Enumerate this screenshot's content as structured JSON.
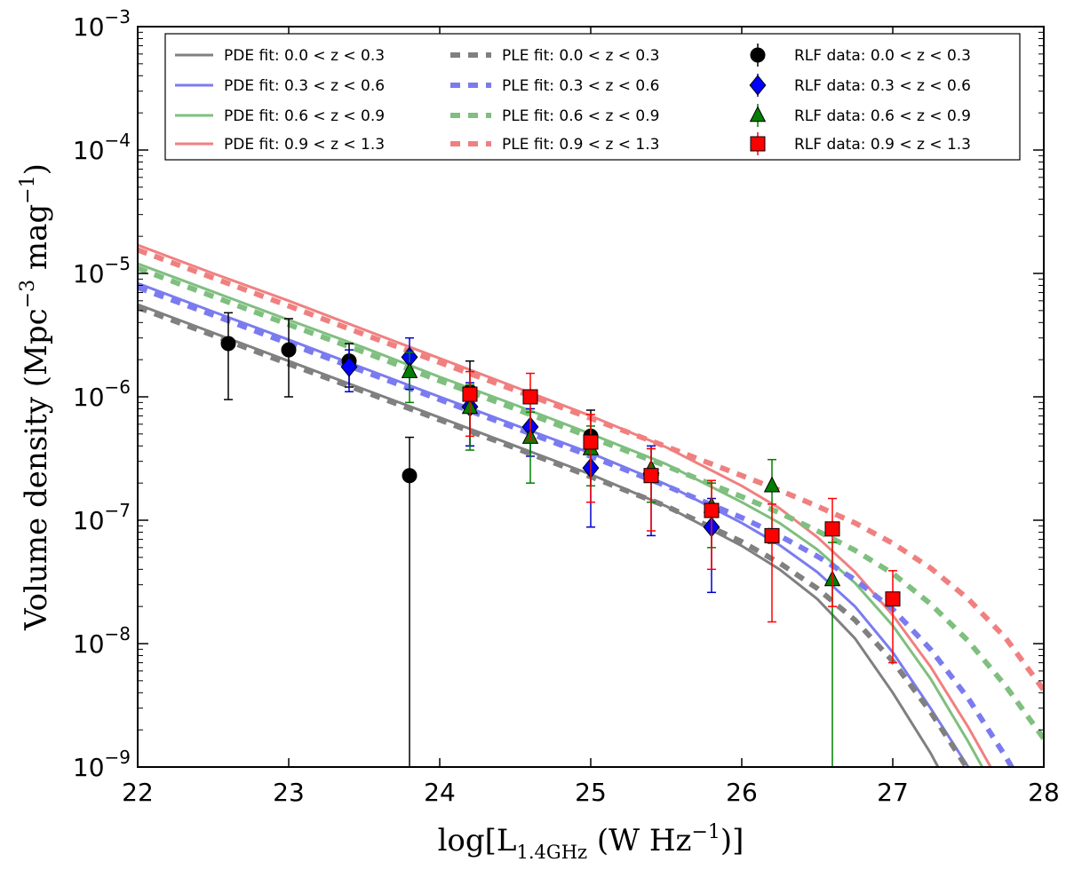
{
  "chart_data": {
    "type": "line",
    "xlabel": "log[L1.4GHz (W Hz−1)]",
    "ylabel": "Volume density (Mpc−3 mag−1)",
    "xlim": [
      22,
      28
    ],
    "ylim_log10": [
      -9,
      -3
    ],
    "yscale": "log",
    "x_ticks": [
      22,
      23,
      24,
      25,
      26,
      27,
      28
    ],
    "y_ticks": [
      {
        "base": "10",
        "exp": "-9",
        "value": -9
      },
      {
        "base": "10",
        "exp": "-8",
        "value": -8
      },
      {
        "base": "10",
        "exp": "-7",
        "value": -7
      },
      {
        "base": "10",
        "exp": "-6",
        "value": -6
      },
      {
        "base": "10",
        "exp": "-5",
        "value": -5
      },
      {
        "base": "10",
        "exp": "-4",
        "value": -4
      },
      {
        "base": "10",
        "exp": "-3",
        "value": -3
      }
    ],
    "legend_position": "top",
    "curves": [
      {
        "name": "PDE fit: 0.0 < z < 0.3",
        "model": "PDE",
        "color": "#808080",
        "x": [
          22,
          22.5,
          23,
          23.5,
          24,
          24.5,
          25,
          25.5,
          26,
          26.25,
          26.5,
          26.75,
          27,
          27.25,
          27.5
        ],
        "y": [
          5.6e-06,
          3.3e-06,
          1.95e-06,
          1.15e-06,
          6.8e-07,
          4e-07,
          2.35e-07,
          1.3e-07,
          6.2e-08,
          4e-08,
          2.3e-08,
          1.1e-08,
          4e-09,
          1.3e-09,
          3.5e-10
        ]
      },
      {
        "name": "PDE fit: 0.3 < z < 0.6",
        "model": "PDE",
        "color": "#7b7bf0",
        "x": [
          22,
          22.5,
          23,
          23.5,
          24,
          24.5,
          25,
          25.5,
          26,
          26.25,
          26.5,
          26.75,
          27,
          27.25,
          27.5,
          27.7
        ],
        "y": [
          8.3e-06,
          4.9e-06,
          2.9e-06,
          1.7e-06,
          1e-06,
          5.9e-07,
          3.5e-07,
          1.95e-07,
          9.5e-08,
          6.3e-08,
          3.8e-08,
          2e-08,
          8.5e-09,
          3e-09,
          1e-09,
          4e-10
        ]
      },
      {
        "name": "PDE fit: 0.6 < z < 0.9",
        "model": "PDE",
        "color": "#7fbf7f",
        "x": [
          22,
          22.5,
          23,
          23.5,
          24,
          24.5,
          25,
          25.5,
          26,
          26.25,
          26.5,
          26.75,
          27,
          27.25,
          27.5,
          27.75
        ],
        "y": [
          1.2e-05,
          7.1e-06,
          4.2e-06,
          2.5e-06,
          1.45e-06,
          8.6e-07,
          5e-07,
          2.85e-07,
          1.4e-07,
          9.5e-08,
          5.8e-08,
          3.1e-08,
          1.4e-08,
          5.2e-09,
          1.6e-09,
          4.5e-10
        ]
      },
      {
        "name": "PDE fit: 0.9 < z < 1.3",
        "model": "PDE",
        "color": "#f08080",
        "x": [
          22,
          22.5,
          23,
          23.5,
          24,
          24.5,
          25,
          25.5,
          26,
          26.25,
          26.5,
          26.75,
          27,
          27.25,
          27.5,
          27.75,
          27.9
        ],
        "y": [
          1.7e-05,
          1e-05,
          6e-06,
          3.5e-06,
          2.05e-06,
          1.2e-06,
          7e-07,
          3.9e-07,
          1.9e-07,
          1.25e-07,
          7.3e-08,
          3.8e-08,
          1.7e-08,
          6.5e-09,
          2.1e-09,
          6e-10,
          3e-10
        ]
      },
      {
        "name": "PLE fit: 0.0 < z < 0.3",
        "model": "PLE",
        "color": "#808080",
        "x": [
          22,
          22.5,
          23,
          23.5,
          24,
          24.5,
          25,
          25.5,
          26,
          26.25,
          26.5,
          26.75,
          27,
          27.25,
          27.5,
          27.75
        ],
        "y": [
          5.3e-06,
          3.15e-06,
          1.85e-06,
          1.1e-06,
          6.5e-07,
          3.85e-07,
          2.25e-07,
          1.3e-07,
          6.7e-08,
          4.5e-08,
          2.8e-08,
          1.55e-08,
          7.2e-09,
          2.8e-09,
          9.5e-10,
          3e-10
        ]
      },
      {
        "name": "PLE fit: 0.3 < z < 0.6",
        "model": "PLE",
        "color": "#7b7bf0",
        "x": [
          22,
          22.5,
          23,
          23.5,
          24,
          24.5,
          25,
          25.5,
          26,
          26.25,
          26.5,
          26.75,
          27,
          27.25,
          27.5,
          27.75,
          28
        ],
        "y": [
          7.7e-06,
          4.6e-06,
          2.7e-06,
          1.6e-06,
          9.5e-07,
          5.6e-07,
          3.3e-07,
          1.9e-07,
          1.05e-07,
          7.5e-08,
          5.1e-08,
          3.3e-08,
          1.9e-08,
          9e-09,
          3.6e-09,
          1.2e-09,
          3.5e-10
        ]
      },
      {
        "name": "PLE fit: 0.6 < z < 0.9",
        "model": "PLE",
        "color": "#7fbf7f",
        "x": [
          22,
          22.5,
          23,
          23.5,
          24,
          24.5,
          25,
          25.5,
          26,
          26.25,
          26.5,
          26.75,
          27,
          27.25,
          27.5,
          27.75,
          28
        ],
        "y": [
          1.1e-05,
          6.5e-06,
          3.85e-06,
          2.3e-06,
          1.35e-06,
          8e-07,
          4.7e-07,
          2.75e-07,
          1.55e-07,
          1.15e-07,
          8.2e-08,
          5.7e-08,
          3.7e-08,
          2.1e-08,
          1.05e-08,
          4.5e-09,
          1.7e-09
        ]
      },
      {
        "name": "PLE fit: 0.9 < z < 1.3",
        "model": "PLE",
        "color": "#f08080",
        "x": [
          22,
          22.5,
          23,
          23.5,
          24,
          24.5,
          25,
          25.5,
          26,
          26.25,
          26.5,
          26.75,
          27,
          27.25,
          27.5,
          27.75,
          28
        ],
        "y": [
          1.55e-05,
          9.2e-06,
          5.45e-06,
          3.2e-06,
          1.9e-06,
          1.13e-06,
          6.7e-07,
          3.95e-07,
          2.3e-07,
          1.75e-07,
          1.3e-07,
          9.5e-08,
          6.5e-08,
          4.1e-08,
          2.3e-08,
          1.1e-08,
          4.2e-09
        ]
      }
    ],
    "data_series": [
      {
        "name": "RLF data: 0.0 < z < 0.3",
        "marker": "circle",
        "color": "#000000",
        "errcolor": "#000000",
        "points": [
          {
            "x": 22.6,
            "y": 2.7e-06,
            "lo": 9.5e-07,
            "hi": 4.8e-06
          },
          {
            "x": 23.0,
            "y": 2.4e-06,
            "lo": 1e-06,
            "hi": 4.3e-06
          },
          {
            "x": 23.4,
            "y": 1.95e-06,
            "lo": 1.2e-06,
            "hi": 2.7e-06
          },
          {
            "x": 23.8,
            "y": 2.3e-07,
            "lo": 1e-09,
            "hi": 4.7e-07
          },
          {
            "x": 24.2,
            "y": 1.1e-06,
            "lo": 4e-07,
            "hi": 1.95e-06
          },
          {
            "x": 25.0,
            "y": 4.8e-07,
            "lo": 1.9e-07,
            "hi": 7.8e-07
          }
        ]
      },
      {
        "name": "RLF data: 0.3 < z < 0.6",
        "marker": "diamond",
        "color": "#0000ff",
        "errcolor": "#0000cc",
        "points": [
          {
            "x": 23.4,
            "y": 1.75e-06,
            "lo": 1.1e-06,
            "hi": 2.4e-06
          },
          {
            "x": 23.8,
            "y": 2.1e-06,
            "lo": 1.15e-06,
            "hi": 3e-06
          },
          {
            "x": 24.2,
            "y": 8.3e-07,
            "lo": 4e-07,
            "hi": 1.3e-06
          },
          {
            "x": 24.6,
            "y": 5.7e-07,
            "lo": 3.3e-07,
            "hi": 8e-07
          },
          {
            "x": 25.0,
            "y": 2.65e-07,
            "lo": 8.8e-08,
            "hi": 4.4e-07
          },
          {
            "x": 25.4,
            "y": 2.4e-07,
            "lo": 7.5e-08,
            "hi": 4e-07
          },
          {
            "x": 25.8,
            "y": 8.8e-08,
            "lo": 2.6e-08,
            "hi": 1.5e-07
          }
        ]
      },
      {
        "name": "RLF data: 0.6 < z < 0.9",
        "marker": "triangle",
        "color": "#007f00",
        "errcolor": "#007f00",
        "points": [
          {
            "x": 23.8,
            "y": 1.6e-06,
            "lo": 9e-07,
            "hi": 2.3e-06
          },
          {
            "x": 24.2,
            "y": 8.2e-07,
            "lo": 3.7e-07,
            "hi": 1.25e-06
          },
          {
            "x": 24.6,
            "y": 4.7e-07,
            "lo": 2e-07,
            "hi": 7.5e-07
          },
          {
            "x": 25.0,
            "y": 3.8e-07,
            "lo": 1.9e-07,
            "hi": 5.8e-07
          },
          {
            "x": 25.4,
            "y": 2.6e-07,
            "lo": 1.4e-07,
            "hi": 3.8e-07
          },
          {
            "x": 25.8,
            "y": 1.3e-07,
            "lo": 6e-08,
            "hi": 2e-07
          },
          {
            "x": 26.2,
            "y": 1.9e-07,
            "lo": 6.5e-08,
            "hi": 3.1e-07
          },
          {
            "x": 26.6,
            "y": 3.3e-08,
            "lo": 1e-09,
            "hi": 6.6e-08
          }
        ]
      },
      {
        "name": "RLF data: 0.9 < z < 1.3",
        "marker": "square",
        "color": "#ff0000",
        "errcolor": "#ff0000",
        "points": [
          {
            "x": 24.2,
            "y": 1.05e-06,
            "lo": 4.8e-07,
            "hi": 1.6e-06
          },
          {
            "x": 24.6,
            "y": 1e-06,
            "lo": 4.5e-07,
            "hi": 1.55e-06
          },
          {
            "x": 25.0,
            "y": 4.3e-07,
            "lo": 1.4e-07,
            "hi": 7.2e-07
          },
          {
            "x": 25.4,
            "y": 2.3e-07,
            "lo": 8.2e-08,
            "hi": 3.8e-07
          },
          {
            "x": 25.8,
            "y": 1.2e-07,
            "lo": 4e-08,
            "hi": 2.1e-07
          },
          {
            "x": 26.2,
            "y": 7.5e-08,
            "lo": 1.5e-08,
            "hi": 1.35e-07
          },
          {
            "x": 26.6,
            "y": 8.5e-08,
            "lo": 2e-08,
            "hi": 1.5e-07
          },
          {
            "x": 27.0,
            "y": 2.3e-08,
            "lo": 7e-09,
            "hi": 3.9e-08
          }
        ]
      }
    ],
    "legend": {
      "pde": [
        "PDE fit: 0.0 < z < 0.3",
        "PDE fit: 0.3 < z < 0.6",
        "PDE fit: 0.6 < z < 0.9",
        "PDE fit: 0.9 < z < 1.3"
      ],
      "ple": [
        "PLE fit: 0.0 < z < 0.3",
        "PLE fit: 0.3 < z < 0.6",
        "PLE fit: 0.6 < z < 0.9",
        "PLE fit: 0.9 < z < 1.3"
      ],
      "rlf": [
        "RLF data: 0.0 < z < 0.3",
        "RLF data: 0.3 < z < 0.6",
        "RLF data: 0.6 < z < 0.9",
        "RLF data: 0.9 < z < 1.3"
      ]
    }
  }
}
